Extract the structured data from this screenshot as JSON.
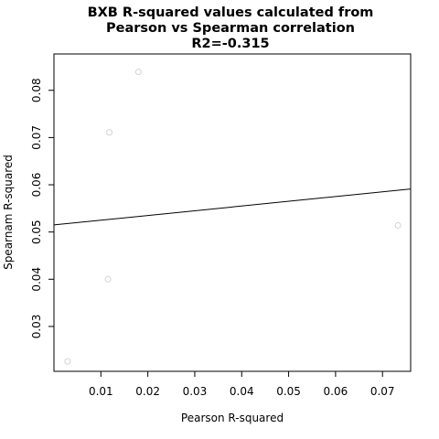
{
  "chart_data": {
    "type": "scatter",
    "title_lines": [
      "BXB R-squared values calculated from",
      "Pearson vs Spearman correlation",
      "R2=-0.315"
    ],
    "xlabel": "Pearson R-squared",
    "ylabel": "Spearnam R-squared",
    "xlim": [
      0.0,
      0.076
    ],
    "ylim": [
      0.0205,
      0.0877
    ],
    "x_ticks": [
      0.01,
      0.02,
      0.03,
      0.04,
      0.05,
      0.06,
      0.07
    ],
    "x_tick_labels": [
      "0.01",
      "0.02",
      "0.03",
      "0.04",
      "0.05",
      "0.06",
      "0.07"
    ],
    "y_ticks": [
      0.03,
      0.04,
      0.05,
      0.06,
      0.07,
      0.08
    ],
    "y_tick_labels": [
      "0.03",
      "0.04",
      "0.05",
      "0.06",
      "0.07",
      "0.08"
    ],
    "points": [
      {
        "x": 0.0029,
        "y": 0.0226
      },
      {
        "x": 0.0115,
        "y": 0.04
      },
      {
        "x": 0.0118,
        "y": 0.0711
      },
      {
        "x": 0.018,
        "y": 0.0839
      },
      {
        "x": 0.0733,
        "y": 0.0514
      }
    ],
    "fit_line": {
      "x": [
        0.0,
        0.076
      ],
      "y": [
        0.0515,
        0.0591
      ]
    },
    "grid": false,
    "point_color": "#d3d3d3",
    "line_color": "#000000"
  }
}
